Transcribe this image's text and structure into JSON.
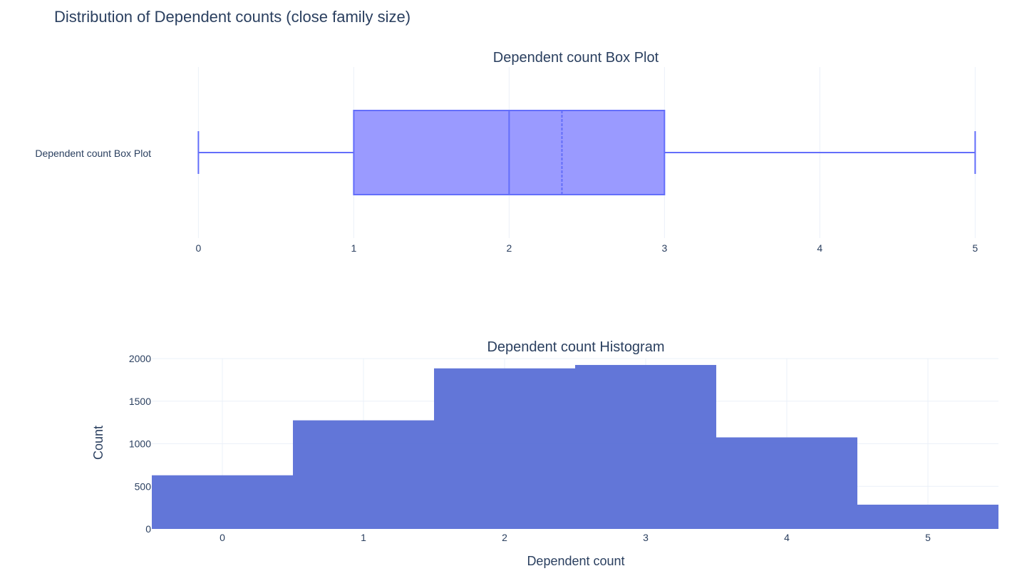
{
  "title": "Distribution of Dependent counts (close family size)",
  "colors": {
    "box_line": "#636efa",
    "box_fill": "#9a9aff",
    "bar_fill": "#5a6fd6",
    "grid": "#ebf0f8",
    "text": "#2a3f5f"
  },
  "chart_data": [
    {
      "type": "box",
      "title": "Dependent count Box Plot",
      "category_label": "Dependent count Box Plot",
      "orientation": "horizontal",
      "min": 0,
      "q1": 1,
      "median": 2,
      "mean": 2.34,
      "q3": 3,
      "max": 5,
      "xlim": [
        -0.3,
        5.15
      ],
      "x_ticks": [
        "0",
        "1",
        "2",
        "3",
        "4",
        "5"
      ],
      "grid": true
    },
    {
      "type": "bar",
      "subtype": "histogram",
      "title": "Dependent count Histogram",
      "xlabel": "Dependent count",
      "ylabel": "Count",
      "categories": [
        "0",
        "1",
        "2",
        "3",
        "4",
        "5"
      ],
      "values": [
        630,
        1275,
        1885,
        1925,
        1075,
        285
      ],
      "xlim": [
        -0.5,
        5.5
      ],
      "ylim": [
        0,
        2000
      ],
      "y_ticks": [
        "0",
        "500",
        "1000",
        "1500",
        "2000"
      ],
      "grid": true
    }
  ]
}
